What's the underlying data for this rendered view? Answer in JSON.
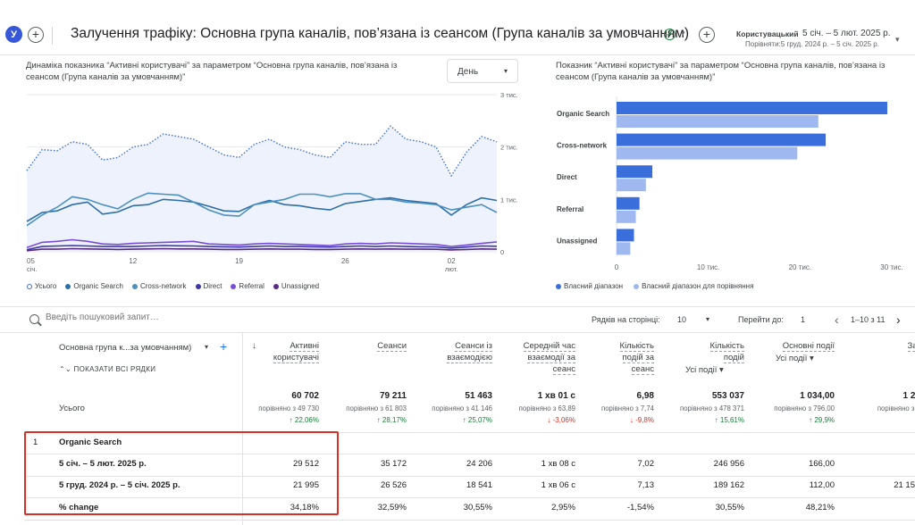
{
  "header": {
    "avatar_letter": "У",
    "plus": "+",
    "title": "Залучення трафіку: Основна група каналів, пов’язана із сеансом (Група каналів за умовчанням)",
    "check": "✓",
    "date_label": "Користувацький",
    "date_range": "5 січ. – 5 лют. 2025 р.",
    "date_compare": "Порівняти:5 груд. 2024 р. – 5 січ. 2025 р."
  },
  "line_chart": {
    "title": "Динаміка показника “Активні користувачі” за параметром “Основна група каналів, пов’язана із сеансом (Група каналів за умовчанням)”",
    "interval": "День"
  },
  "chart_data": [
    {
      "type": "line",
      "title": "Динаміка показника “Активні користувачі” за параметром “Основна група каналів, пов’язана із сеансом (Група каналів за умовчанням)”",
      "x": [
        "05 січ.",
        "06",
        "07",
        "08",
        "09",
        "10",
        "11",
        "12",
        "13",
        "14",
        "15",
        "16",
        "17",
        "18",
        "19",
        "20",
        "21",
        "22",
        "23",
        "24",
        "25",
        "26",
        "27",
        "28",
        "29",
        "30",
        "31",
        "01",
        "02 лют.",
        "03",
        "04",
        "05"
      ],
      "x_tick_labels": [
        {
          "i": 0,
          "top": "05",
          "bottom": "січ."
        },
        {
          "i": 7,
          "top": "12",
          "bottom": ""
        },
        {
          "i": 14,
          "top": "19",
          "bottom": ""
        },
        {
          "i": 21,
          "top": "26",
          "bottom": ""
        },
        {
          "i": 28,
          "top": "02",
          "bottom": "лют."
        }
      ],
      "y_ticks": [
        {
          "v": 0,
          "label": "0"
        },
        {
          "v": 1000,
          "label": "1 тис."
        },
        {
          "v": 2000,
          "label": "2 тис."
        },
        {
          "v": 3000,
          "label": "3 тис."
        }
      ],
      "ylim": [
        0,
        3000
      ],
      "series": [
        {
          "name": "Усього",
          "style": "dotted",
          "color": "#3f6ed6",
          "area": true,
          "values": [
            1550,
            1950,
            1930,
            2100,
            2050,
            1750,
            1800,
            2000,
            2050,
            2250,
            2200,
            2150,
            2000,
            1850,
            1800,
            2050,
            2150,
            2000,
            1950,
            1850,
            1800,
            2100,
            2050,
            2050,
            2400,
            2150,
            2100,
            2000,
            1450,
            1900,
            2200,
            2100
          ]
        },
        {
          "name": "Organic Search",
          "style": "solid",
          "color": "#2d6fa8",
          "values": [
            580,
            750,
            780,
            900,
            950,
            720,
            760,
            880,
            900,
            1000,
            980,
            950,
            870,
            780,
            770,
            900,
            980,
            900,
            880,
            830,
            800,
            920,
            960,
            1000,
            1030,
            980,
            950,
            920,
            700,
            900,
            1030,
            980
          ]
        },
        {
          "name": "Cross-network",
          "style": "solid",
          "color": "#4c90c0",
          "values": [
            500,
            700,
            850,
            1050,
            1000,
            900,
            820,
            1000,
            1120,
            1100,
            1080,
            950,
            800,
            700,
            680,
            900,
            950,
            1000,
            1100,
            1100,
            1050,
            1110,
            1110,
            1000,
            1000,
            950,
            930,
            900,
            800,
            850,
            900,
            750
          ]
        },
        {
          "name": "Direct",
          "style": "solid",
          "color": "#3b39a8",
          "values": [
            40,
            100,
            110,
            120,
            110,
            100,
            100,
            100,
            110,
            120,
            115,
            110,
            100,
            95,
            90,
            100,
            110,
            100,
            100,
            95,
            90,
            100,
            110,
            100,
            110,
            100,
            95,
            95,
            70,
            90,
            110,
            105
          ]
        },
        {
          "name": "Referral",
          "style": "solid",
          "color": "#7a4dd8",
          "values": [
            80,
            180,
            200,
            230,
            200,
            150,
            140,
            160,
            170,
            180,
            190,
            200,
            150,
            140,
            130,
            150,
            160,
            150,
            140,
            130,
            120,
            150,
            160,
            150,
            170,
            160,
            150,
            140,
            100,
            130,
            160,
            190
          ]
        },
        {
          "name": "Unassigned",
          "style": "solid",
          "color": "#5a2a82",
          "values": [
            20,
            50,
            50,
            60,
            55,
            50,
            45,
            50,
            55,
            60,
            55,
            55,
            50,
            45,
            45,
            50,
            55,
            50,
            50,
            45,
            45,
            50,
            55,
            50,
            55,
            50,
            50,
            48,
            35,
            45,
            55,
            50
          ]
        }
      ]
    },
    {
      "type": "bar",
      "orientation": "horizontal",
      "title": "Показник “Активні користувачі” за параметром “Основна група каналів, пов’язана із сеансом (Група каналів за умовчанням)”",
      "categories": [
        "Organic Search",
        "Cross-network",
        "Direct",
        "Referral",
        "Unassigned"
      ],
      "x_ticks": [
        {
          "v": 0,
          "label": "0"
        },
        {
          "v": 10000,
          "label": "10 тис."
        },
        {
          "v": 20000,
          "label": "20 тис."
        },
        {
          "v": 30000,
          "label": "30 тис."
        }
      ],
      "xlim": [
        0,
        30000
      ],
      "series": [
        {
          "name": "Власний діапазон",
          "color": "#3a6fdb",
          "values": [
            29512,
            22800,
            3900,
            2500,
            1900
          ]
        },
        {
          "name": "Власний діапазон для порівняння",
          "color": "#9fb8ef",
          "values": [
            21995,
            19700,
            3200,
            2100,
            1500
          ]
        }
      ]
    }
  ],
  "toolbar": {
    "search_placeholder": "Введіть пошуковий запит…",
    "rows_label": "Рядків на сторінці:",
    "rows_value": "10",
    "goto_label": "Перейти до:",
    "goto_value": "1",
    "prev": "‹",
    "next": "›",
    "range": "1–10 з 11"
  },
  "table": {
    "dimension_header": "Основна група к...за умовчанням)",
    "show_all_rows": "ПОКАЗАТИ ВСІ РЯДКИ",
    "sort_arrow": "↓",
    "total_label": "Усього",
    "columns": [
      {
        "l1": "Активні",
        "l2": "користувачі",
        "l3": "",
        "sub": ""
      },
      {
        "l1": "Сеанси",
        "l2": "",
        "l3": "",
        "sub": ""
      },
      {
        "l1": "Сеанси із",
        "l2": "взаємодією",
        "l3": "",
        "sub": ""
      },
      {
        "l1": "Середній час",
        "l2": "взаємодії за",
        "l3": "сеанс",
        "sub": ""
      },
      {
        "l1": "Кількість",
        "l2": "подій за",
        "l3": "сеанс",
        "sub": ""
      },
      {
        "l1": "Кількість",
        "l2": "подій",
        "l3": "",
        "sub": "Усі події"
      },
      {
        "l1": "Основні події",
        "l2": "",
        "l3": "",
        "sub": "Усі події"
      },
      {
        "l1": "Заг",
        "l2": "",
        "l3": "",
        "sub": ""
      }
    ],
    "totals": [
      {
        "value": "60 702",
        "compare": "порівняно з 49 730",
        "change": "↑ 22,06%",
        "dir": "up"
      },
      {
        "value": "79 211",
        "compare": "порівняно з 61 803",
        "change": "↑ 28,17%",
        "dir": "up"
      },
      {
        "value": "51 463",
        "compare": "порівняно з 41 146",
        "change": "↑ 25,07%",
        "dir": "up"
      },
      {
        "value": "1 хв 01 с",
        "compare": "порівняно з 63,89",
        "change": "↓ -3,06%",
        "dir": "down"
      },
      {
        "value": "6,98",
        "compare": "порівняно з 7,74",
        "change": "↓ -9,8%",
        "dir": "down"
      },
      {
        "value": "553 037",
        "compare": "порівняно з 478 371",
        "change": "↑ 15,61%",
        "dir": "up"
      },
      {
        "value": "1 034,00",
        "compare": "порівняно з 796,00",
        "change": "↑ 29,9%",
        "dir": "up"
      },
      {
        "value": "1 20",
        "compare": "порівняно з 2",
        "change": "",
        "dir": "up"
      }
    ],
    "group": {
      "index": "1",
      "label": "Organic Search"
    },
    "rows": [
      {
        "label": "5 січ. – 5 лют. 2025 р.",
        "values": [
          "29 512",
          "35 172",
          "24 206",
          "1 хв 08 с",
          "7,02",
          "246 956",
          "166,00",
          ""
        ]
      },
      {
        "label": "5 груд. 2024 р. – 5 січ. 2025 р.",
        "values": [
          "21 995",
          "26 526",
          "18 541",
          "1 хв 06 с",
          "7,13",
          "189 162",
          "112,00",
          "21 15"
        ]
      },
      {
        "label": "% change",
        "values": [
          "34,18%",
          "32,59%",
          "30,55%",
          "2,95%",
          "-1,54%",
          "30,55%",
          "48,21%",
          ""
        ]
      }
    ]
  }
}
